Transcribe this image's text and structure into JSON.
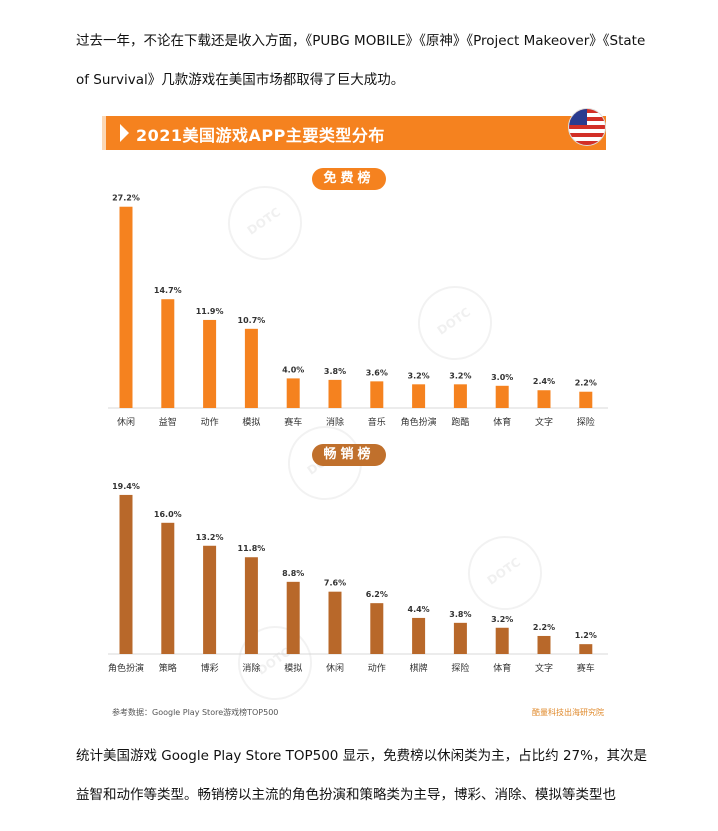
{
  "text": {
    "top_paragraph": "过去一年，不论在下载还是收入方面，《PUBG MOBILE》《原神》《Project Makeover》《State of Survival》几款游戏在美国市场都取得了巨大成功。",
    "bottom_paragraph": "统计美国游戏 Google Play Store TOP500 显示，免费榜以休闲类为主，占比约 27%，其次是益智和动作等类型。畅销榜以主流的角色扮演和策略类为主导，博彩、消除、模拟等类型也"
  },
  "figure": {
    "banner_title": "2021美国游戏APP主要类型分布",
    "watermark": "DOTC UNITED",
    "footnote_source": "参考数据：Google Play Store游戏榜TOP500",
    "footnote_brand": "酷量科技出海研究院",
    "colors": {
      "banner": "#f5821f",
      "free_bar": "#f5821f",
      "grossing_bar": "#b8682a"
    }
  },
  "chart_data": [
    {
      "type": "bar",
      "title": "免费榜",
      "categories": [
        "休闲",
        "益智",
        "动作",
        "模拟",
        "赛车",
        "消除",
        "音乐",
        "角色扮演",
        "跑酷",
        "体育",
        "文字",
        "探险"
      ],
      "values": [
        27.2,
        14.7,
        11.9,
        10.7,
        4.0,
        3.8,
        3.6,
        3.2,
        3.2,
        3.0,
        2.4,
        2.2
      ],
      "value_labels": [
        "27.2%",
        "14.7%",
        "11.9%",
        "10.7%",
        "4.0%",
        "3.8%",
        "3.6%",
        "3.2%",
        "3.2%",
        "3.0%",
        "2.4%",
        "2.2%"
      ],
      "color": "#f5821f",
      "grid": false
    },
    {
      "type": "bar",
      "title": "畅销榜",
      "categories": [
        "角色扮演",
        "策略",
        "博彩",
        "消除",
        "模拟",
        "休闲",
        "动作",
        "棋牌",
        "探险",
        "体育",
        "文字",
        "赛车"
      ],
      "values": [
        19.4,
        16.0,
        13.2,
        11.8,
        8.8,
        7.6,
        6.2,
        4.4,
        3.8,
        3.2,
        2.2,
        1.2
      ],
      "value_labels": [
        "19.4%",
        "16.0%",
        "13.2%",
        "11.8%",
        "8.8%",
        "7.6%",
        "6.2%",
        "4.4%",
        "3.8%",
        "3.2%",
        "2.2%",
        "1.2%"
      ],
      "color": "#b8682a",
      "grid": false
    }
  ]
}
